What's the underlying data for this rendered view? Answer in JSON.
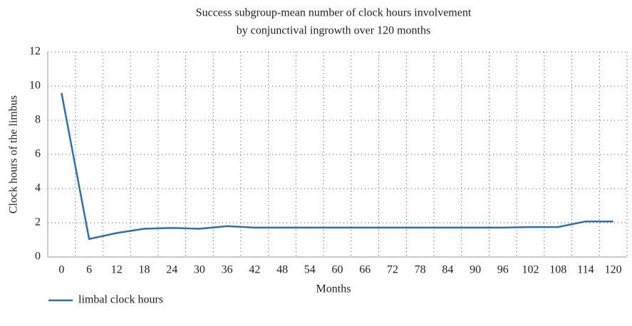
{
  "chart_data": {
    "type": "line",
    "title": [
      "Success subgroup-mean number of clock hours involvement",
      "by conjunctival ingrowth over 120 months"
    ],
    "x_label": "Months",
    "y_label": "Clock hours of the limbus",
    "categories": [
      0,
      6,
      12,
      18,
      24,
      30,
      36,
      42,
      48,
      54,
      60,
      66,
      72,
      78,
      84,
      90,
      96,
      102,
      108,
      114,
      120
    ],
    "series": [
      {
        "name": "limbal clock hours",
        "color": "#2e6fad",
        "values": [
          9.6,
          1.05,
          1.4,
          1.65,
          1.7,
          1.65,
          1.8,
          1.72,
          1.72,
          1.72,
          1.72,
          1.72,
          1.72,
          1.72,
          1.72,
          1.72,
          1.72,
          1.75,
          1.75,
          2.08,
          2.08
        ]
      }
    ],
    "ylim": [
      0,
      12
    ],
    "yticks": [
      0,
      2,
      4,
      6,
      8,
      10,
      12
    ],
    "grid": true,
    "legend": "bottom-left"
  }
}
